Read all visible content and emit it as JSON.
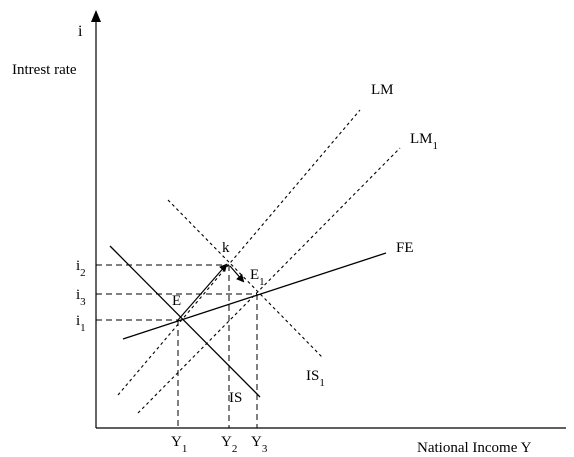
{
  "diagram": {
    "axes": {
      "y_symbol": "i",
      "y_label": "Intrest rate",
      "x_label": "National Income Y"
    },
    "curves": {
      "lm": {
        "name": "LM",
        "sub": ""
      },
      "lm1": {
        "name": "LM",
        "sub": "1"
      },
      "fe": {
        "name": "FE",
        "sub": ""
      },
      "is": {
        "name": "IS",
        "sub": ""
      },
      "is1": {
        "name": "IS",
        "sub": "1"
      }
    },
    "points": {
      "e": {
        "name": "E",
        "sub": ""
      },
      "e1": {
        "name": "E",
        "sub": "1"
      },
      "k": {
        "name": "k",
        "sub": ""
      }
    },
    "y_ticks": [
      {
        "name": "i",
        "sub": "2"
      },
      {
        "name": "i",
        "sub": "3"
      },
      {
        "name": "i",
        "sub": "1"
      }
    ],
    "x_ticks": [
      {
        "name": "Y",
        "sub": "1"
      },
      {
        "name": "Y",
        "sub": "2"
      },
      {
        "name": "Y",
        "sub": "3"
      }
    ]
  }
}
